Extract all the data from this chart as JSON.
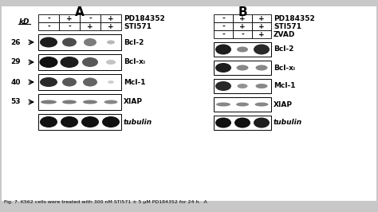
{
  "title_A": "A",
  "title_B": "B",
  "fig_bg": "#c8c8c8",
  "panel_bg": "#ffffff",
  "panel_A": {
    "header_row1": [
      "-",
      "+",
      "-",
      "+"
    ],
    "header_row2": [
      "-",
      "-",
      "+",
      "+"
    ],
    "header_label1": "PD184352",
    "header_label2": "STI571",
    "kd_labels": [
      "26",
      "29",
      "40",
      "53"
    ],
    "blot_labels": [
      "Bcl-2",
      "Bcl-xₗ",
      "Mcl-1",
      "XIAP",
      "tubulin"
    ]
  },
  "panel_B": {
    "header_row1": [
      "-",
      "+",
      "+"
    ],
    "header_row2": [
      "-",
      "+",
      "+"
    ],
    "header_row3": [
      "-",
      "-",
      "+"
    ],
    "header_label1": "PD184352",
    "header_label2": "STI571",
    "header_label3": "ZVAD",
    "blot_labels": [
      "Bcl-2",
      "Bcl-xₗ",
      "Mcl-1",
      "XIAP",
      "tubulin"
    ]
  },
  "footer_text": "Fig. 7. K562 cells were treated with 300 nM STI571 ± 5 μM PD184352 for 24 h.  A"
}
